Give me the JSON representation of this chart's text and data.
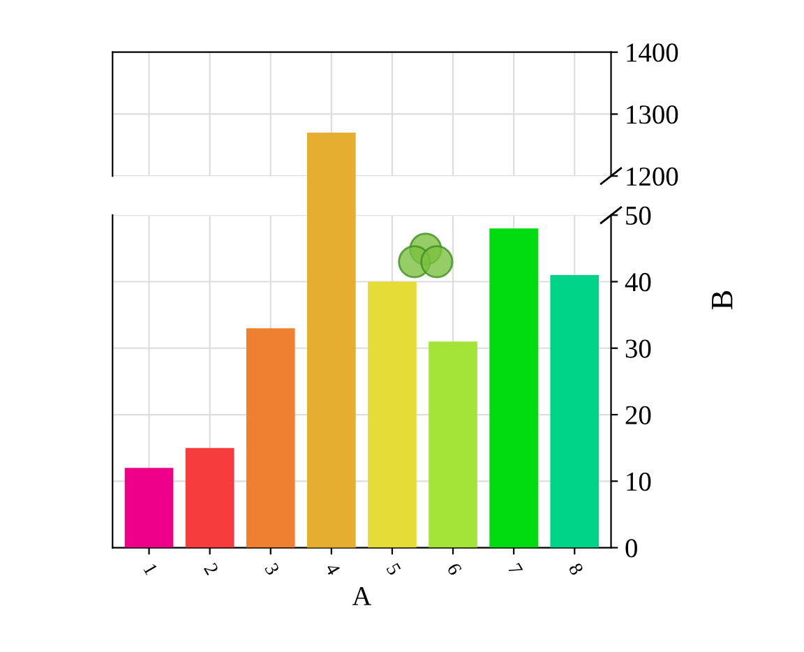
{
  "chart_data": [
    {
      "type": "bar",
      "ylabel": "B",
      "categories": [
        "1",
        "2",
        "3",
        "4",
        "5",
        "6",
        "7",
        "8"
      ],
      "values": [
        null,
        null,
        null,
        1270,
        null,
        null,
        null,
        null
      ],
      "colors": [
        "#ee0088",
        "#f63c3c",
        "#ee8030",
        "#e6ae30",
        "#e6dc38",
        "#a4e438",
        "#00dc10",
        "#00d488"
      ],
      "ylim": [
        1200,
        1400
      ],
      "yticks": [
        1200,
        1300,
        1400
      ],
      "tick_labels": "y",
      "grid": true
    },
    {
      "type": "bar",
      "xlabel": "A",
      "categories": [
        "1",
        "2",
        "3",
        "4",
        "5",
        "6",
        "7",
        "8"
      ],
      "values": [
        12,
        15,
        33,
        null,
        40,
        31,
        48,
        41
      ],
      "colors": [
        "#ee0088",
        "#f63c3c",
        "#ee8030",
        "#e6ae30",
        "#e6dc38",
        "#a4e438",
        "#00dc10",
        "#00d488"
      ],
      "ylim": [
        0,
        50
      ],
      "yticks": [
        0,
        10,
        20,
        30,
        40,
        50
      ],
      "grid": true
    }
  ]
}
